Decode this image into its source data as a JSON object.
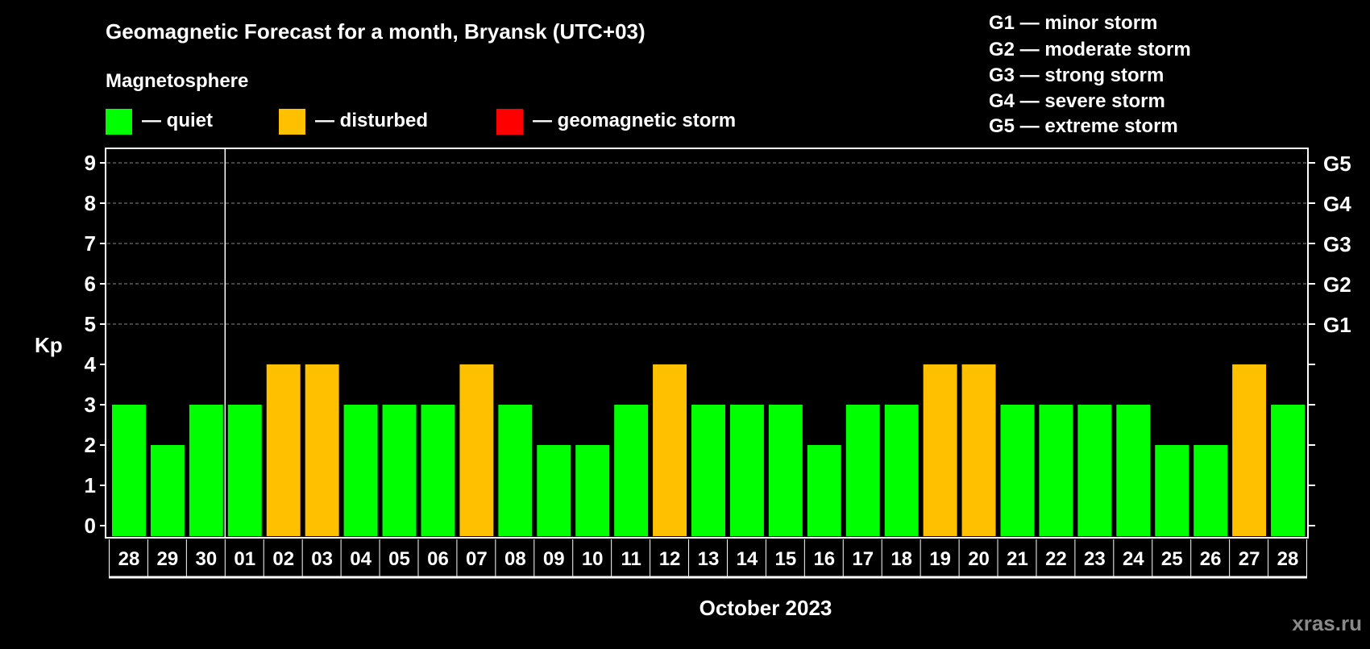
{
  "chart_data": {
    "type": "bar",
    "title": "Geomagnetic Forecast for a month, Bryansk (UTC+03)",
    "subtitle": "Magnetosphere",
    "xlabel": "October 2023",
    "ylabel": "Kp",
    "ylim": [
      0,
      9
    ],
    "yticks": [
      "0",
      "1",
      "2",
      "3",
      "4",
      "5",
      "6",
      "7",
      "8",
      "9"
    ],
    "right_ticks": [
      {
        "kp": 5,
        "label": "G1"
      },
      {
        "kp": 6,
        "label": "G2"
      },
      {
        "kp": 7,
        "label": "G3"
      },
      {
        "kp": 8,
        "label": "G4"
      },
      {
        "kp": 9,
        "label": "G5"
      }
    ],
    "grid": "dashed at Kp 5-9",
    "categories": [
      "28",
      "29",
      "30",
      "01",
      "02",
      "03",
      "04",
      "05",
      "06",
      "07",
      "08",
      "09",
      "10",
      "11",
      "12",
      "13",
      "14",
      "15",
      "16",
      "17",
      "18",
      "19",
      "20",
      "21",
      "22",
      "23",
      "24",
      "25",
      "26",
      "27",
      "28"
    ],
    "values": [
      3,
      2,
      3,
      3,
      4,
      4,
      3,
      3,
      3,
      4,
      3,
      2,
      2,
      3,
      4,
      3,
      3,
      3,
      2,
      3,
      3,
      4,
      4,
      3,
      3,
      3,
      3,
      2,
      2,
      4,
      3
    ],
    "month_divider_after_index": 2,
    "legend": [
      {
        "label": "— quiet",
        "color": "#00ff00"
      },
      {
        "label": "— disturbed",
        "color": "#ffc000"
      },
      {
        "label": "— geomagnetic storm",
        "color": "#ff0000"
      }
    ],
    "storm_scale": [
      "G1 — minor storm",
      "G2 — moderate storm",
      "G3 — strong storm",
      "G4 — severe storm",
      "G5 — extreme storm"
    ],
    "watermark": "xras.ru"
  }
}
